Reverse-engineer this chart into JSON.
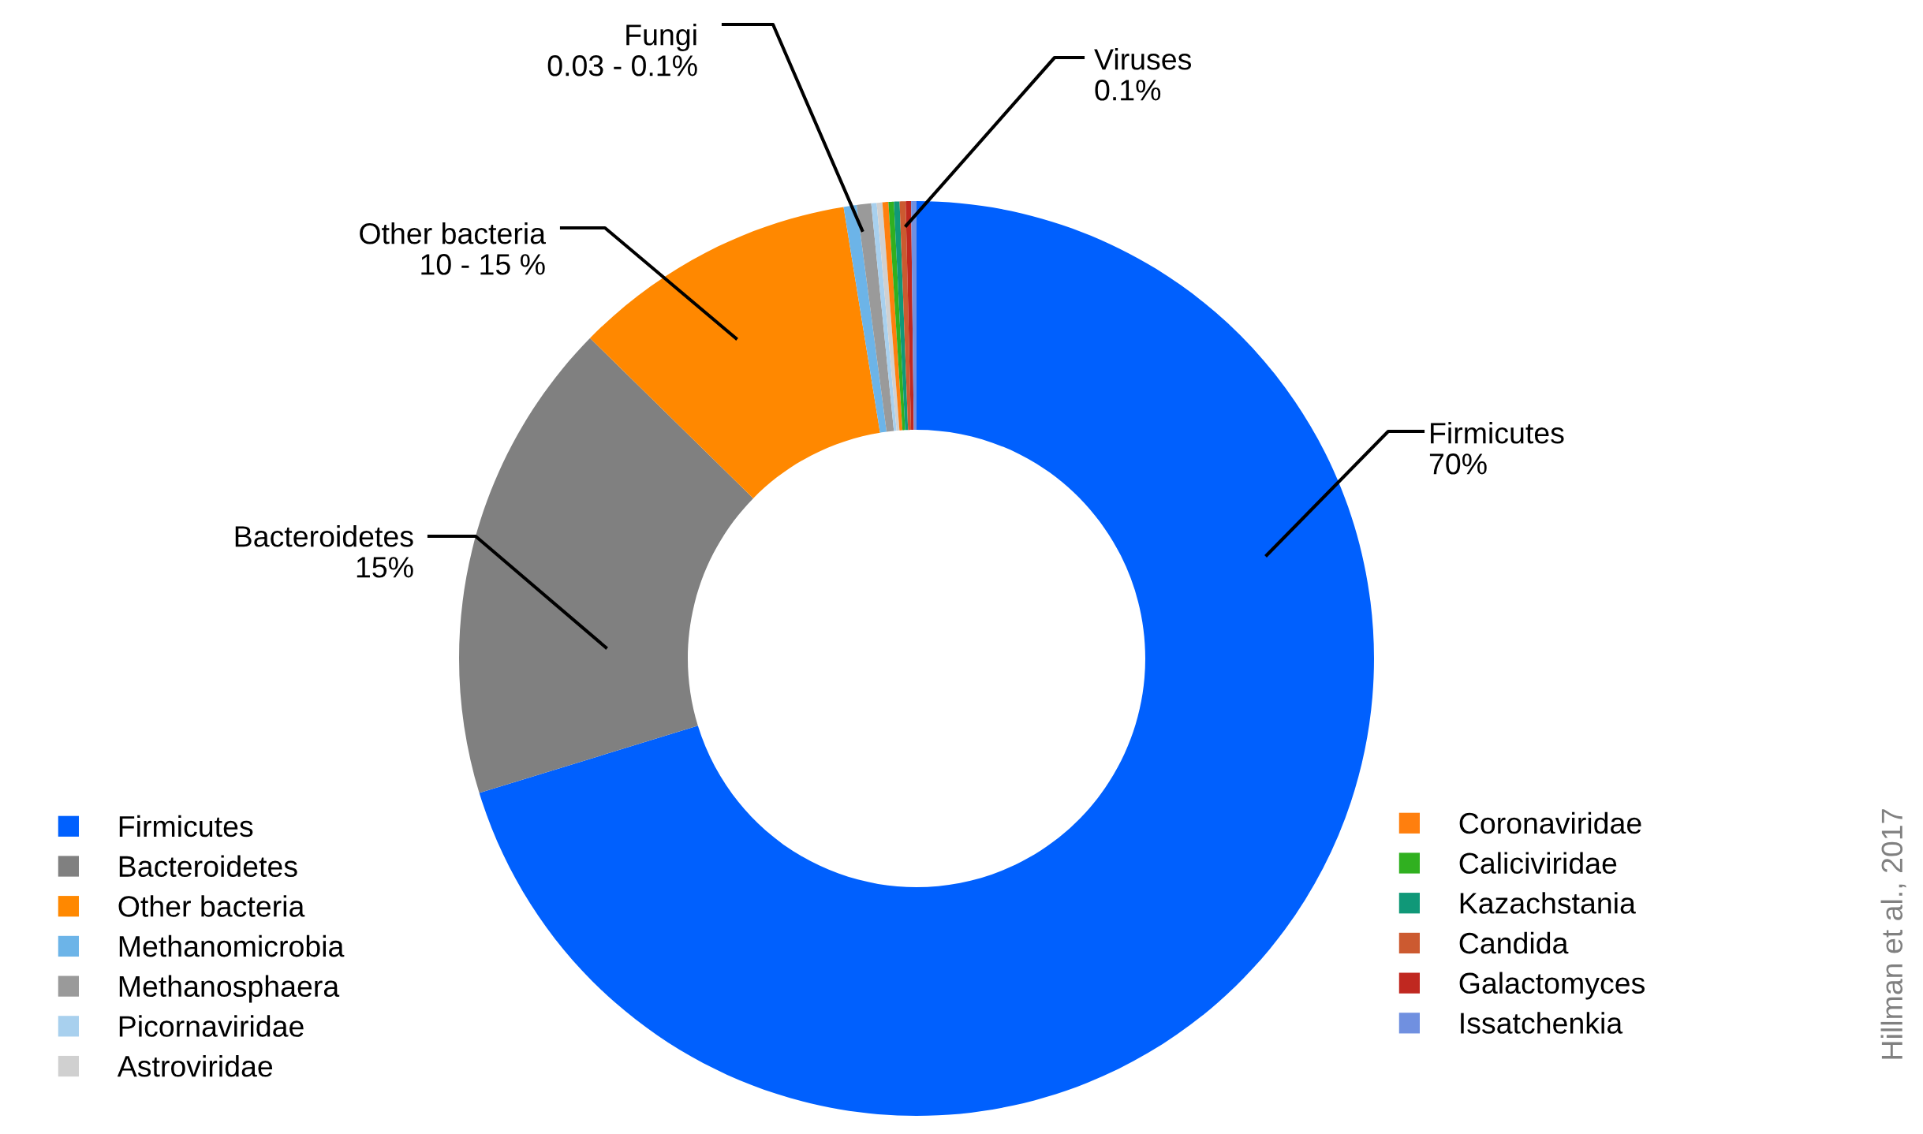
{
  "chart_data": {
    "type": "donut",
    "categories": [
      "Firmicutes",
      "Bacteroidetes",
      "Other bacteria",
      "Methanomicrobia",
      "Methanosphaera",
      "Picornaviridae",
      "Astroviridae",
      "Coronaviridae",
      "Caliciviridae",
      "Kazachstania",
      "Candida",
      "Galactomyces",
      "Issatchenkia"
    ],
    "values": [
      70.25,
      17.1,
      10.1,
      0.46,
      0.51,
      0.19,
      0.2,
      0.21,
      0.19,
      0.2,
      0.21,
      0.19,
      0.19
    ],
    "colors": [
      "#0060fe",
      "#808080",
      "#ff8800",
      "#6cb4e8",
      "#9a9a9a",
      "#a8d0ee",
      "#d0d0d0",
      "#ff7f0e",
      "#30b020",
      "#109878",
      "#cc5a30",
      "#c02820",
      "#7090e0"
    ],
    "annotations": [
      "Firmicutes\n70%",
      "Bacteroidetes\n15%",
      "Other bacteria\n10 - 15 %",
      "Fungi\n0.03 - 0.1%",
      "Viruses\n0.1%",
      "Hillman et al., 2017"
    ],
    "legend": "bottom"
  }
}
